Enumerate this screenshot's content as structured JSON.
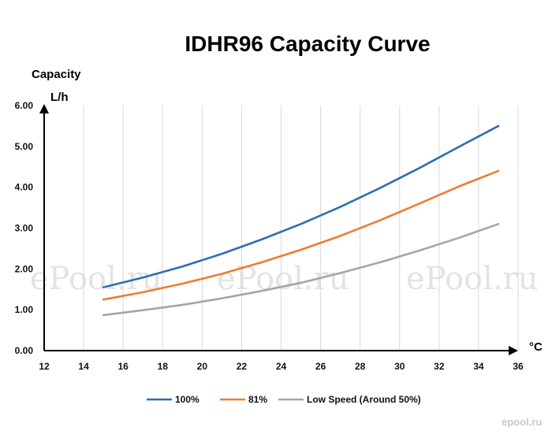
{
  "watermarks": [
    "ePool.ru",
    "ePool.ru",
    "ePool.ru"
  ],
  "brand_mark": "epool.ru",
  "chart_data": {
    "type": "line",
    "title": "IDHR96  Capacity Curve",
    "ylabel": "Capacity",
    "yunit": "L/h",
    "xunit": "°C",
    "xlim": [
      12,
      36
    ],
    "ylim": [
      0,
      6
    ],
    "xticks": [
      "12",
      "14",
      "16",
      "18",
      "20",
      "22",
      "24",
      "26",
      "28",
      "30",
      "32",
      "34",
      "36"
    ],
    "yticks": [
      "0.00",
      "1.00",
      "2.00",
      "3.00",
      "4.00",
      "5.00",
      "6.00"
    ],
    "grid": "vertical",
    "legend_position": "bottom",
    "x": [
      15,
      17,
      19,
      21,
      23,
      25,
      27,
      29,
      31,
      33,
      35
    ],
    "series": [
      {
        "name": "100%",
        "color": "#2e6fb0",
        "values": [
          1.55,
          1.79,
          2.06,
          2.37,
          2.72,
          3.1,
          3.52,
          3.98,
          4.47,
          4.99,
          5.5
        ]
      },
      {
        "name": "81%",
        "color": "#ed7d31",
        "values": [
          1.25,
          1.43,
          1.64,
          1.88,
          2.16,
          2.47,
          2.81,
          3.19,
          3.6,
          4.02,
          4.4
        ]
      },
      {
        "name": "Low Speed (Around 50%)",
        "color": "#a5a5a5",
        "values": [
          0.87,
          0.99,
          1.12,
          1.28,
          1.46,
          1.66,
          1.9,
          2.16,
          2.45,
          2.76,
          3.1
        ]
      }
    ]
  }
}
